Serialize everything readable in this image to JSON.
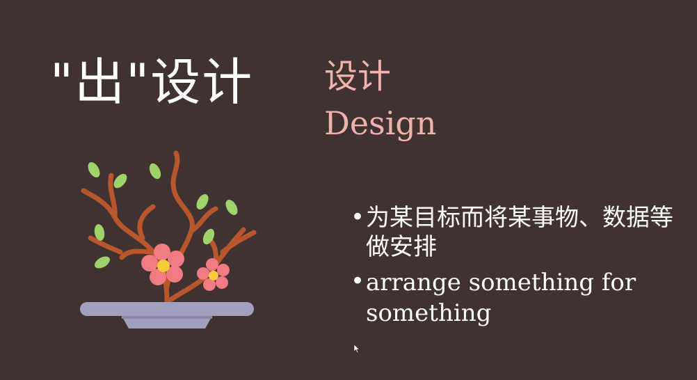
{
  "slide": {
    "title": "\"出\"设计",
    "subtitle_zh": "设计",
    "subtitle_en": "Design",
    "bullets": [
      {
        "marker": "•",
        "text": "为某目标而将某事物、数据等做安排"
      },
      {
        "marker": "•",
        "text": "arrange something for something"
      }
    ],
    "illustration": "bonsai-icon",
    "cursor": "mouse-cursor-icon"
  },
  "colors": {
    "background": "#3f3231",
    "title": "#ffffff",
    "accent": "#efb2ad",
    "branch": "#b8562e",
    "leaf": "#9ed36b",
    "petal": "#f07b82",
    "flower_center": "#f8cb3b",
    "pot": "#a3a0bf"
  }
}
